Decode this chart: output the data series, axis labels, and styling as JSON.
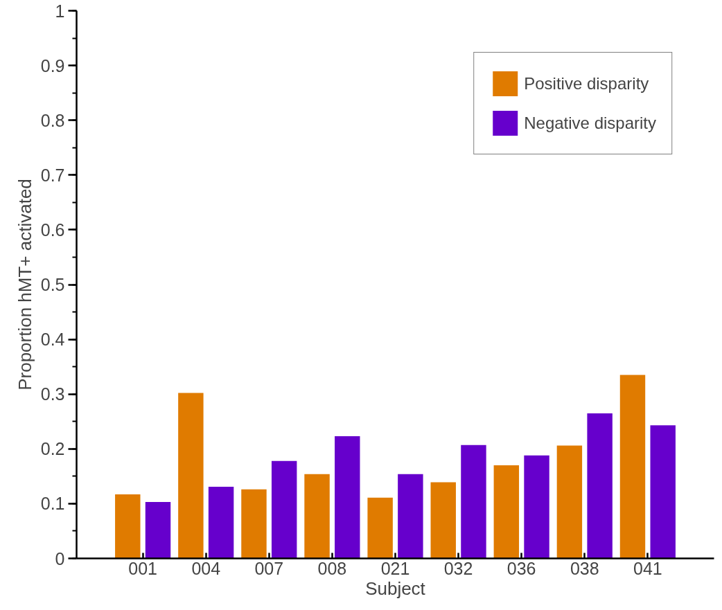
{
  "chart_data": {
    "type": "bar",
    "xlabel": "Subject",
    "ylabel": "Proportion hMT+ activated",
    "categories": [
      "001",
      "004",
      "007",
      "008",
      "021",
      "032",
      "036",
      "038",
      "041"
    ],
    "series": [
      {
        "name": "Positive disparity",
        "color": "#e07b00",
        "values": [
          0.117,
          0.302,
          0.126,
          0.154,
          0.111,
          0.139,
          0.17,
          0.206,
          0.335
        ]
      },
      {
        "name": "Negative disparity",
        "color": "#6600cc",
        "values": [
          0.103,
          0.131,
          0.178,
          0.223,
          0.154,
          0.207,
          0.188,
          0.265,
          0.243
        ]
      }
    ],
    "ylim": [
      0,
      1
    ],
    "yticks": [
      0,
      0.1,
      0.2,
      0.3,
      0.4,
      0.5,
      0.6,
      0.7,
      0.8,
      0.9,
      1
    ],
    "grid": false,
    "legend": "top right"
  }
}
